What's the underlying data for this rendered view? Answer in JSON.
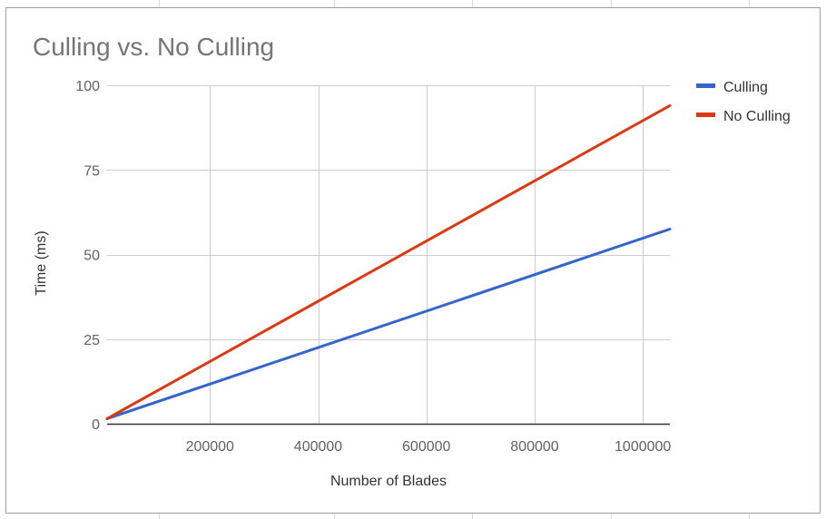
{
  "chart_data": {
    "type": "line",
    "title": "Culling vs. No Culling",
    "xlabel": "Number of Blades",
    "ylabel": "Time (ms)",
    "x": [
      10000,
      1050000
    ],
    "xlim": [
      10000,
      1050000
    ],
    "ylim": [
      0,
      100
    ],
    "x_ticks": [
      200000,
      400000,
      600000,
      800000,
      1000000
    ],
    "x_tick_labels": [
      "200000",
      "400000",
      "600000",
      "800000",
      "1000000"
    ],
    "y_ticks": [
      0,
      25,
      50,
      75,
      100
    ],
    "y_tick_labels": [
      "0",
      "25",
      "50",
      "75",
      "100"
    ],
    "grid": true,
    "legend_position": "right",
    "series": [
      {
        "name": "Culling",
        "color": "#3366cc",
        "values": [
          1.5,
          57.5
        ]
      },
      {
        "name": "No Culling",
        "color": "#dc3912",
        "values": [
          1.5,
          94
        ]
      }
    ]
  }
}
